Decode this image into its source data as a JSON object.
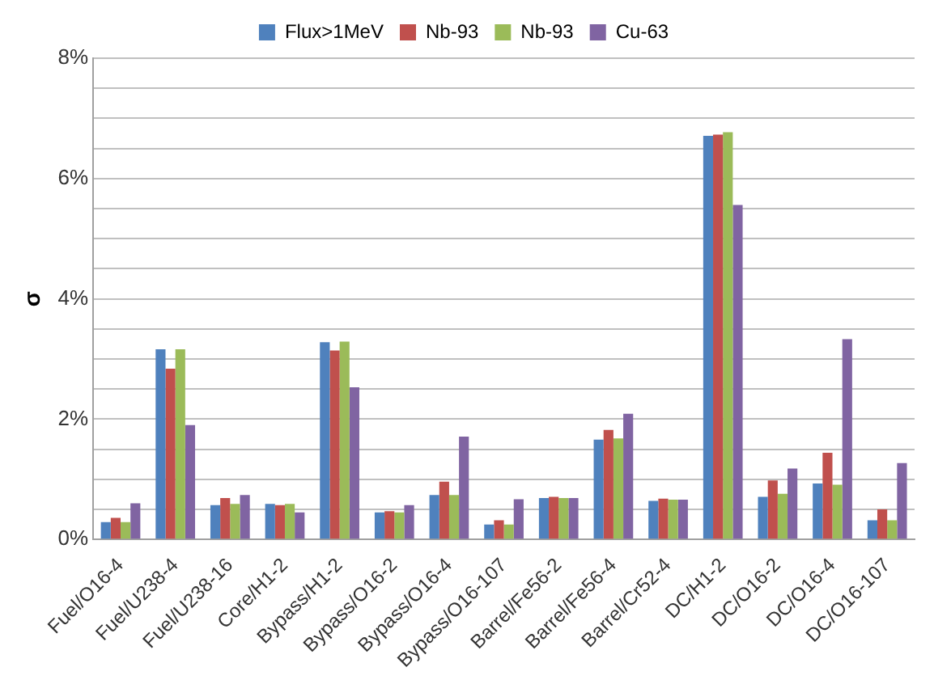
{
  "chart_data": {
    "type": "bar",
    "ylabel": "σ",
    "categories": [
      "Fuel/O16-4",
      "Fuel/U238-4",
      "Fuel/U238-16",
      "Core/H1-2",
      "Bypass/H1-2",
      "Bypass/O16-2",
      "Bypass/O16-4",
      "Bypass/O16-107",
      "Barrel/Fe56-2",
      "Barrel/Fe56-4",
      "Barrel/Cr52-4",
      "DC/H1-2",
      "DC/O16-2",
      "DC/O16-4",
      "DC/O16-107"
    ],
    "series": [
      {
        "name": "Flux>1MeV",
        "color": "#4f81bd",
        "values": [
          0.29,
          3.16,
          0.57,
          0.59,
          3.28,
          0.45,
          0.74,
          0.25,
          0.69,
          1.66,
          0.64,
          6.71,
          0.71,
          0.93,
          0.32
        ]
      },
      {
        "name": "Nb-93",
        "color": "#c0504d",
        "values": [
          0.36,
          2.84,
          0.69,
          0.57,
          3.14,
          0.47,
          0.96,
          0.32,
          0.71,
          1.82,
          0.68,
          6.73,
          0.98,
          1.44,
          0.5
        ]
      },
      {
        "name": "Nb-93",
        "color": "#9bbb59",
        "values": [
          0.29,
          3.16,
          0.59,
          0.59,
          3.29,
          0.45,
          0.74,
          0.25,
          0.69,
          1.68,
          0.66,
          6.77,
          0.76,
          0.91,
          0.32
        ]
      },
      {
        "name": "Cu-63",
        "color": "#8064a2",
        "values": [
          0.6,
          1.9,
          0.74,
          0.45,
          2.53,
          0.57,
          1.71,
          0.67,
          0.69,
          2.09,
          0.66,
          5.56,
          1.18,
          3.33,
          1.27
        ]
      }
    ],
    "ylim": [
      0,
      8
    ],
    "yticks": [
      {
        "value": 0,
        "label": "0%"
      },
      {
        "value": 0.5,
        "label": null
      },
      {
        "value": 1,
        "label": null
      },
      {
        "value": 1.5,
        "label": null
      },
      {
        "value": 2,
        "label": "2%"
      },
      {
        "value": 2.5,
        "label": null
      },
      {
        "value": 3,
        "label": null
      },
      {
        "value": 3.5,
        "label": null
      },
      {
        "value": 4,
        "label": "4%"
      },
      {
        "value": 4.5,
        "label": null
      },
      {
        "value": 5,
        "label": null
      },
      {
        "value": 5.5,
        "label": null
      },
      {
        "value": 6,
        "label": "6%"
      },
      {
        "value": 6.5,
        "label": null
      },
      {
        "value": 7,
        "label": null
      },
      {
        "value": 7.5,
        "label": null
      },
      {
        "value": 8,
        "label": "8%"
      }
    ],
    "grid": "y",
    "legend": "top"
  }
}
